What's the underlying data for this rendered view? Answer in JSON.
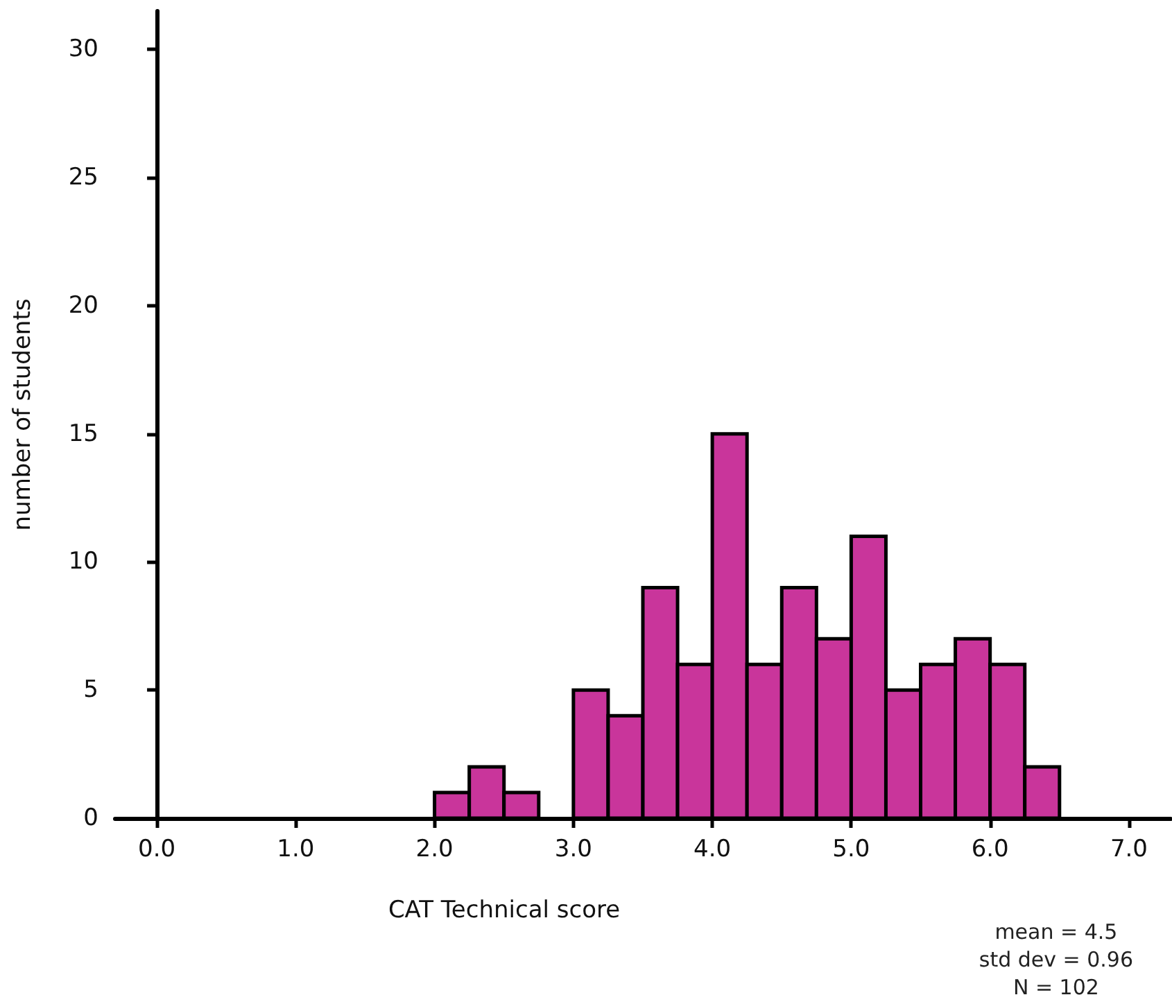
{
  "chart_data": {
    "type": "histogram",
    "xlabel": "CAT Technical score",
    "ylabel": "number of students",
    "bins": [
      2.0,
      2.25,
      2.5,
      2.75,
      3.0,
      3.25,
      3.5,
      3.75,
      4.0,
      4.25,
      4.5,
      4.75,
      5.0,
      5.25,
      5.5,
      5.75,
      6.0,
      6.25,
      6.5
    ],
    "values": [
      1,
      2,
      1,
      0,
      5,
      4,
      9,
      6,
      15,
      6,
      9,
      7,
      11,
      5,
      6,
      7,
      6,
      2
    ],
    "color": "#c9359b",
    "xlim": [
      -0.3,
      7.3
    ],
    "xticks": [
      {
        "value": 0,
        "label": "0.0"
      },
      {
        "value": 1,
        "label": "1.0"
      },
      {
        "value": 2,
        "label": "2.0"
      },
      {
        "value": 3,
        "label": "3.0"
      },
      {
        "value": 4,
        "label": "4.0"
      },
      {
        "value": 5,
        "label": "5.0"
      },
      {
        "value": 6,
        "label": "6.0"
      },
      {
        "value": 7,
        "label": "7.0"
      }
    ],
    "ylim": [
      0,
      31.5
    ],
    "yticks": [
      0,
      5,
      10,
      15,
      20,
      25,
      30
    ],
    "grid": false,
    "legend": false,
    "annotations": [
      "mean = 4.5\nstd dev = 0.96\nN = 102"
    ]
  }
}
